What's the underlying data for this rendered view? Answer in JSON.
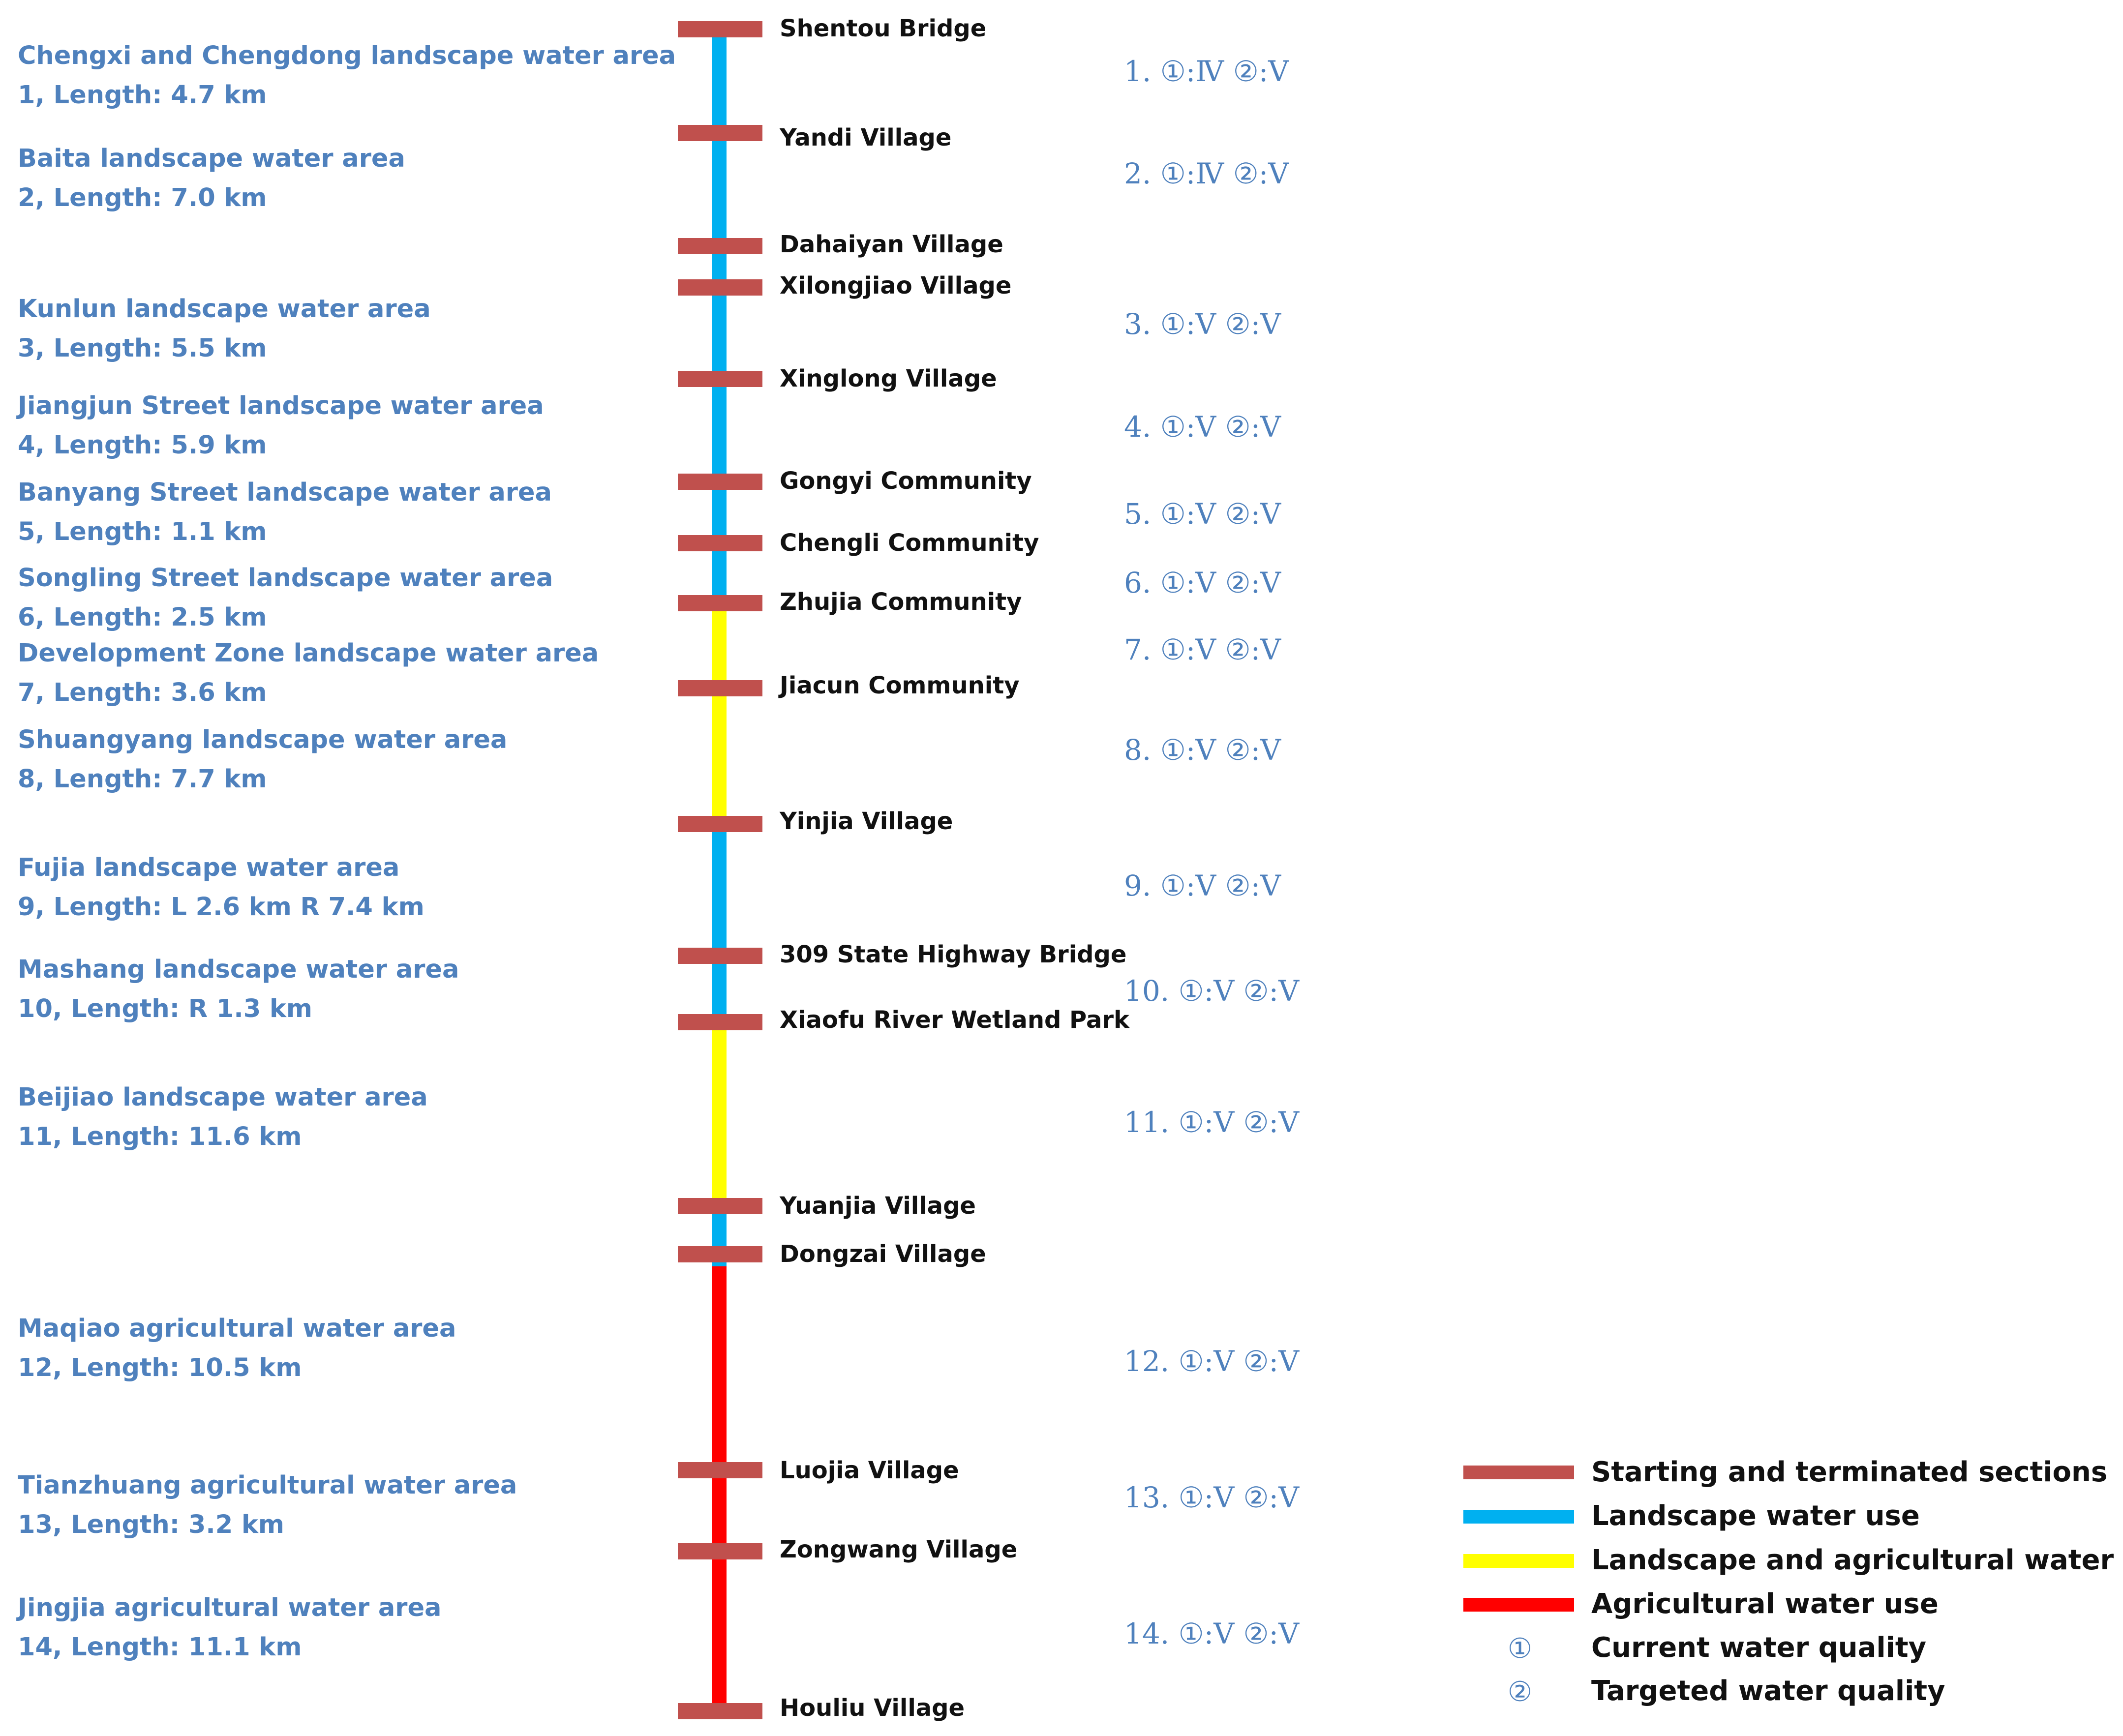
{
  "zones": [
    {
      "name": "Chengxi and Chengdong landscape water area",
      "length": "1, Length: 4.7 km",
      "quality": "1. ①:Ⅳ ②:Ⅴ",
      "use": "landscape"
    },
    {
      "name": "Baita landscape water area",
      "length": "2, Length: 7.0 km",
      "quality": "2. ①:Ⅳ ②:Ⅴ",
      "use": "landscape"
    },
    {
      "name": "Kunlun landscape water area",
      "length": "3, Length: 5.5 km",
      "quality": "3. ①:Ⅴ ②:Ⅴ",
      "use": "landscape"
    },
    {
      "name": "Jiangjun Street landscape water area",
      "length": "4, Length: 5.9 km",
      "quality": "4. ①:Ⅴ ②:Ⅴ",
      "use": "landscape"
    },
    {
      "name": "Banyang Street landscape water area",
      "length": "5, Length: 1.1 km",
      "quality": "5. ①:Ⅴ ②:Ⅴ",
      "use": "landscape"
    },
    {
      "name": "Songling Street landscape water area",
      "length": "6, Length: 2.5 km",
      "quality": "6. ①:Ⅴ ②:Ⅴ",
      "use": "landscape"
    },
    {
      "name": "Development Zone landscape water area",
      "length": "7, Length: 3.6 km",
      "quality": "7. ①:Ⅴ ②:Ⅴ",
      "use": "landscape-agricultural"
    },
    {
      "name": "Shuangyang  landscape water area",
      "length": "8, Length: 7.7 km",
      "quality": "8. ①:Ⅴ ②:Ⅴ",
      "use": "landscape-agricultural"
    },
    {
      "name": "Fujia landscape water area",
      "length": "9, Length: L 2.6 km R 7.4 km",
      "quality": "9. ①:Ⅴ ②:Ⅴ",
      "use": "landscape"
    },
    {
      "name": "Mashang landscape water area",
      "length": "10, Length: R 1.3 km",
      "quality": "10. ①:Ⅴ ②:Ⅴ",
      "use": "landscape"
    },
    {
      "name": "Beijiao landscape water area",
      "length": "11, Length: 11.6 km",
      "quality": "11. ①:Ⅴ ②:Ⅴ",
      "use": "landscape-agricultural"
    },
    {
      "name": "Maqiao agricultural water area",
      "length": "12, Length: 10.5 km",
      "quality": "12. ①:Ⅴ ②:Ⅴ",
      "use": "agricultural"
    },
    {
      "name": "Tianzhuang agricultural water area",
      "length": "13, Length: 3.2 km",
      "quality": "13. ①:Ⅴ ②:Ⅴ",
      "use": "agricultural"
    },
    {
      "name": "Jingjia agricultural water area",
      "length": "14, Length: 11.1 km",
      "quality": "14. ①:Ⅴ ②:Ⅴ",
      "use": "agricultural"
    }
  ],
  "stations": [
    "Shentou Bridge",
    "Yandi Village",
    "Dahaiyan Village",
    "Xilongjiao Village",
    "Xinglong Village",
    "Gongyi Community",
    "Chengli Community",
    "Zhujia Community",
    "Jiacun Community",
    "Yinjia Village",
    "309 State Highway Bridge",
    "Xiaofu River Wetland Park",
    "Yuanjia Village",
    "Dongzai Village",
    "Luojia Village",
    "Zongwang Village",
    "Houliu Village"
  ],
  "legend": {
    "sections": "Starting  and terminated sections",
    "landscape": "Landscape water use",
    "landscape_agricultural": "Landscape and agricultural water use",
    "agricultural": "Agricultural water use",
    "current_symbol": "①",
    "current": "Current water quality",
    "targeted_symbol": "②",
    "targeted": "Targeted water quality"
  },
  "colors": {
    "section_marker": "#C0504D",
    "landscape": "#00B0F0",
    "landscape_agricultural": "#FFFF00",
    "agricultural": "#FF0000",
    "zone_text": "#4F81BD",
    "station_text": "#111111"
  }
}
